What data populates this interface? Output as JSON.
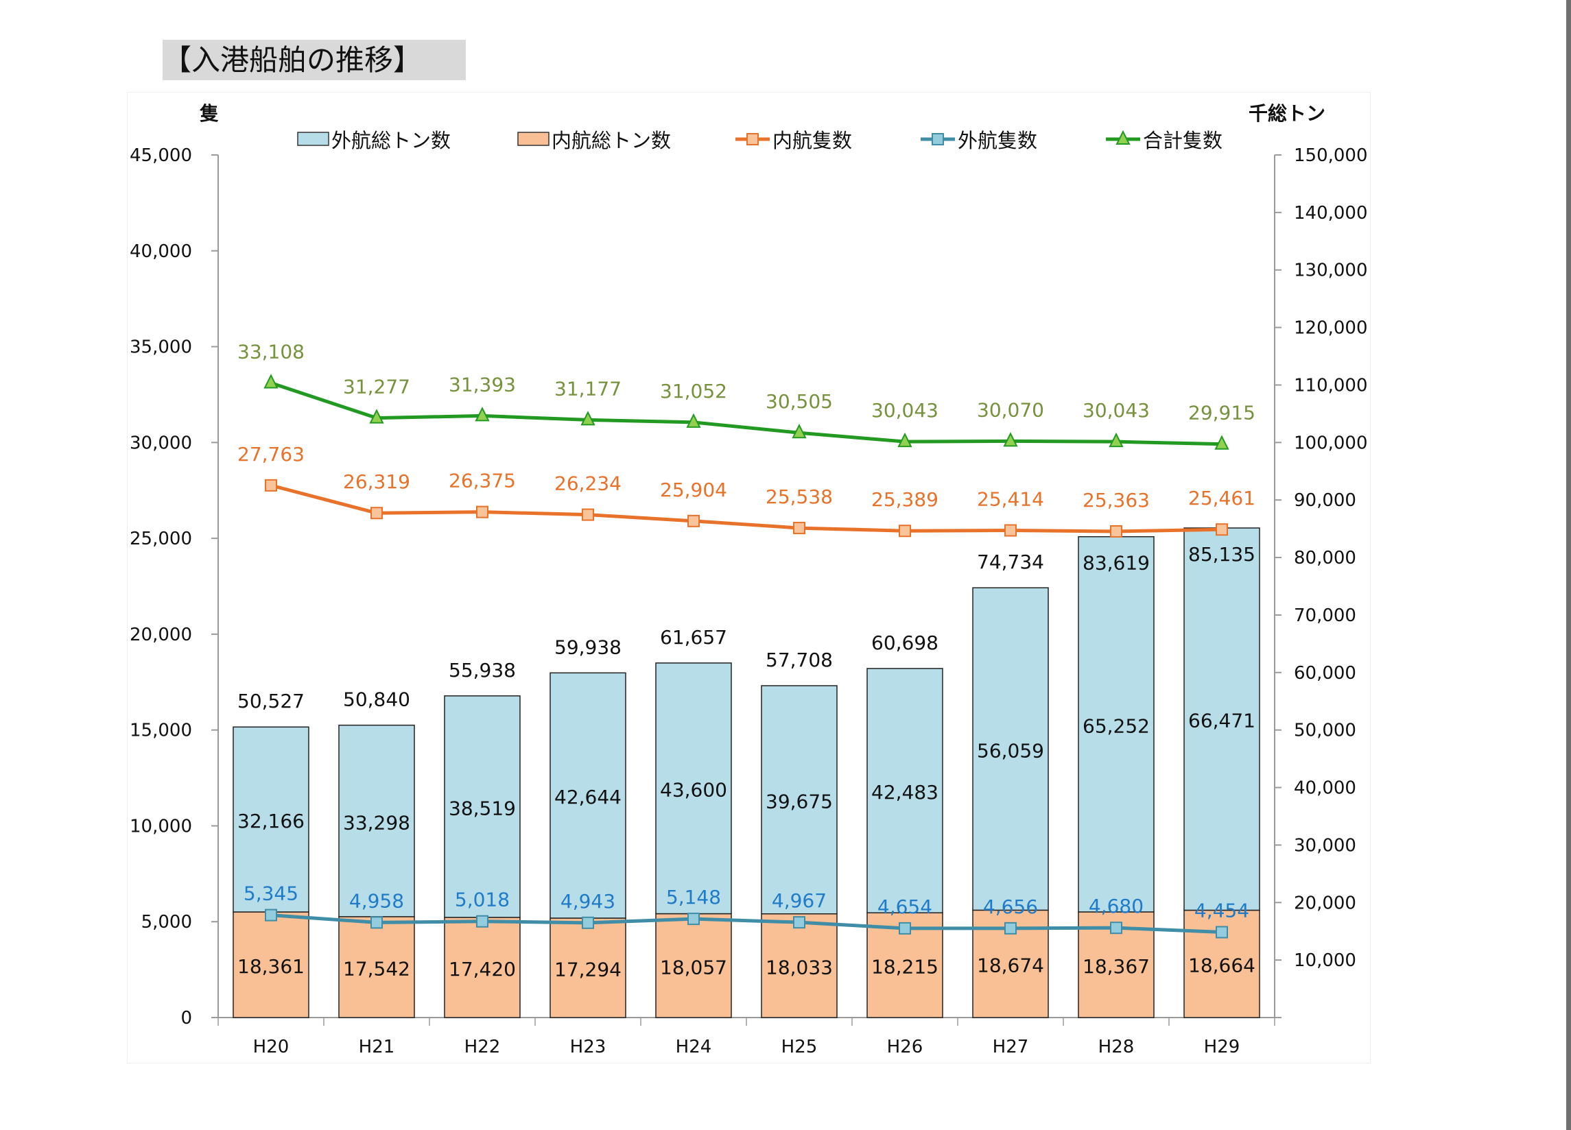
{
  "title": "【入港船舶の推移】",
  "chart_data": {
    "type": "bar",
    "title": "【入港船舶の推移】",
    "categories": [
      "H20",
      "H21",
      "H22",
      "H23",
      "H24",
      "H25",
      "H26",
      "H27",
      "H28",
      "H29"
    ],
    "left_axis": {
      "label": "隻",
      "ylim": [
        0,
        45000
      ],
      "ticks": [
        "0",
        "5,000",
        "10,000",
        "15,000",
        "20,000",
        "25,000",
        "30,000",
        "35,000",
        "40,000",
        "45,000"
      ]
    },
    "right_axis": {
      "label": "千総トン",
      "ylim": [
        0,
        150000
      ],
      "ticks": [
        "10,000",
        "20,000",
        "30,000",
        "40,000",
        "50,000",
        "60,000",
        "70,000",
        "80,000",
        "90,000",
        "100,000",
        "110,000",
        "120,000",
        "130,000",
        "140,000",
        "150,000"
      ]
    },
    "legend_position": "top",
    "bar_series": [
      {
        "name": "内航総トン数",
        "axis": "right",
        "color": "#f8c094",
        "values": [
          18361,
          17542,
          17420,
          17294,
          18057,
          18033,
          18215,
          18674,
          18367,
          18664
        ],
        "labels": [
          "18,361",
          "17,542",
          "17,420",
          "17,294",
          "18,057",
          "18,033",
          "18,215",
          "18,674",
          "18,367",
          "18,664"
        ]
      },
      {
        "name": "外航総トン数",
        "axis": "right",
        "color": "#b7dee8",
        "values": [
          32166,
          33298,
          38519,
          42644,
          43600,
          39675,
          42483,
          56059,
          65252,
          66471
        ],
        "labels": [
          "32,166",
          "33,298",
          "38,519",
          "42,644",
          "43,600",
          "39,675",
          "42,483",
          "56,059",
          "65,252",
          "66,471"
        ]
      }
    ],
    "bar_totals": {
      "values": [
        50527,
        50840,
        55938,
        59938,
        61657,
        57708,
        60698,
        74734,
        83619,
        85135
      ],
      "labels": [
        "50,527",
        "50,840",
        "55,938",
        "59,938",
        "61,657",
        "57,708",
        "60,698",
        "74,734",
        "83,619",
        "85,135"
      ]
    },
    "line_series": [
      {
        "name": "内航隻数",
        "axis": "left",
        "color": "#e8722a",
        "marker": "square",
        "marker_fill": "#f9c49a",
        "label_color": "#e8722a",
        "values": [
          27763,
          26319,
          26375,
          26234,
          25904,
          25538,
          25389,
          25414,
          25363,
          25461
        ],
        "labels": [
          "27,763",
          "26,319",
          "26,375",
          "26,234",
          "25,904",
          "25,538",
          "25,389",
          "25,414",
          "25,363",
          "25,461"
        ]
      },
      {
        "name": "外航隻数",
        "axis": "left",
        "color": "#3f8da6",
        "marker": "square",
        "marker_fill": "#93cddd",
        "label_color": "#1f7bc8",
        "values": [
          5345,
          4958,
          5018,
          4943,
          5148,
          4967,
          4654,
          4656,
          4680,
          4454
        ],
        "labels": [
          "5,345",
          "4,958",
          "5,018",
          "4,943",
          "5,148",
          "4,967",
          "4,654",
          "4,656",
          "4,680",
          "4,454"
        ]
      },
      {
        "name": "合計隻数",
        "axis": "left",
        "color": "#229a22",
        "marker": "triangle",
        "marker_fill": "#92d050",
        "label_color": "#76923c",
        "values": [
          33108,
          31277,
          31393,
          31177,
          31052,
          30505,
          30043,
          30070,
          30043,
          29915
        ],
        "labels": [
          "33,108",
          "31,277",
          "31,393",
          "31,177",
          "31,052",
          "30,505",
          "30,043",
          "30,070",
          "30,043",
          "29,915"
        ]
      }
    ],
    "legend": [
      "外航総トン数",
      "内航総トン数",
      "内航隻数",
      "外航隻数",
      "合計隻数"
    ]
  }
}
